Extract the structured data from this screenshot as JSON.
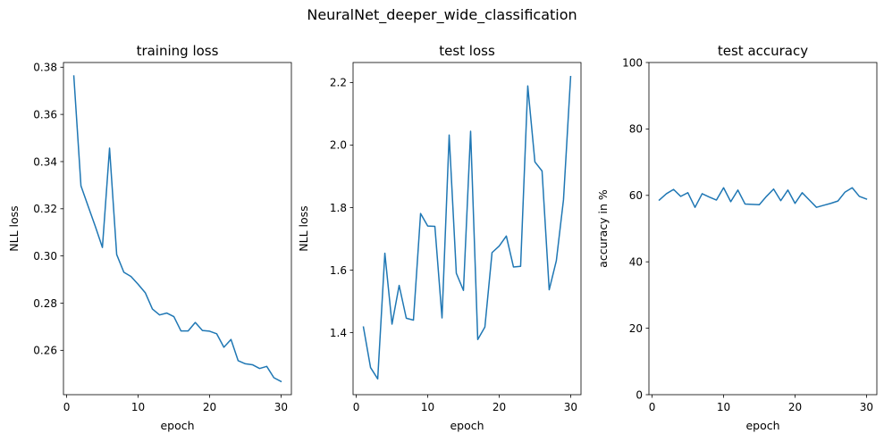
{
  "figure": {
    "suptitle": "NeuralNet_deeper_wide_classification",
    "line_color": "#1f77b4"
  },
  "chart_data": [
    {
      "type": "line",
      "title": "training loss",
      "xlabel": "epoch",
      "ylabel": "NLL loss",
      "xlim": [
        -0.45,
        31.45
      ],
      "ylim": [
        0.2412,
        0.382
      ],
      "xticks": [
        0,
        10,
        20,
        30
      ],
      "xtick_labels": [
        "0",
        "10",
        "20",
        "30"
      ],
      "yticks": [
        0.26,
        0.28,
        0.3,
        0.32,
        0.34,
        0.36,
        0.38
      ],
      "ytick_labels": [
        "0.26",
        "0.28",
        "0.30",
        "0.32",
        "0.34",
        "0.36",
        "0.38"
      ],
      "grid": false,
      "x": [
        1,
        2,
        3,
        4,
        5,
        6,
        7,
        8,
        9,
        10,
        11,
        12,
        13,
        14,
        15,
        16,
        17,
        18,
        19,
        20,
        21,
        22,
        23,
        24,
        25,
        26,
        27,
        28,
        29,
        30
      ],
      "values": [
        0.3763,
        0.3297,
        0.3211,
        0.3126,
        0.3036,
        0.3457,
        0.3006,
        0.2931,
        0.2913,
        0.288,
        0.2844,
        0.2775,
        0.275,
        0.2758,
        0.2743,
        0.2682,
        0.2682,
        0.2718,
        0.2684,
        0.2681,
        0.267,
        0.2613,
        0.2646,
        0.2556,
        0.2543,
        0.2539,
        0.2523,
        0.2532,
        0.2484,
        0.2468
      ]
    },
    {
      "type": "line",
      "title": "test loss",
      "xlabel": "epoch",
      "ylabel": "NLL loss",
      "xlim": [
        -0.45,
        31.45
      ],
      "ylim": [
        1.2015,
        2.264
      ],
      "xticks": [
        0,
        10,
        20,
        30
      ],
      "xtick_labels": [
        "0",
        "10",
        "20",
        "30"
      ],
      "yticks": [
        1.4,
        1.6,
        1.8,
        2.0,
        2.2
      ],
      "ytick_labels": [
        "1.4",
        "1.6",
        "1.8",
        "2.0",
        "2.2"
      ],
      "grid": false,
      "x": [
        1,
        2,
        3,
        4,
        5,
        6,
        7,
        8,
        9,
        10,
        11,
        12,
        13,
        14,
        15,
        16,
        17,
        18,
        19,
        20,
        21,
        22,
        23,
        24,
        25,
        26,
        27,
        28,
        29,
        30
      ],
      "values": [
        1.418,
        1.288,
        1.252,
        1.654,
        1.427,
        1.551,
        1.446,
        1.44,
        1.781,
        1.741,
        1.74,
        1.447,
        2.032,
        1.59,
        1.535,
        2.044,
        1.378,
        1.418,
        1.656,
        1.677,
        1.709,
        1.61,
        1.612,
        2.189,
        1.946,
        1.917,
        1.537,
        1.63,
        1.825,
        2.219
      ]
    },
    {
      "type": "line",
      "title": "test accuracy",
      "xlabel": "epoch",
      "ylabel": "accuracy in %",
      "xlim": [
        -0.45,
        31.45
      ],
      "ylim": [
        0,
        100
      ],
      "xticks": [
        0,
        10,
        20,
        30
      ],
      "xtick_labels": [
        "0",
        "10",
        "20",
        "30"
      ],
      "yticks": [
        0,
        20,
        40,
        60,
        80,
        100
      ],
      "ytick_labels": [
        "0",
        "20",
        "40",
        "60",
        "80",
        "100"
      ],
      "grid": false,
      "x": [
        1,
        2,
        3,
        4,
        5,
        6,
        7,
        8,
        9,
        10,
        11,
        12,
        13,
        14,
        15,
        16,
        17,
        18,
        19,
        20,
        21,
        22,
        23,
        24,
        25,
        26,
        27,
        28,
        29,
        30
      ],
      "values": [
        58.6,
        60.5,
        61.8,
        59.7,
        60.8,
        56.4,
        60.5,
        59.5,
        58.6,
        62.3,
        58.1,
        61.6,
        57.4,
        57.3,
        57.2,
        59.7,
        61.9,
        58.4,
        61.6,
        57.6,
        60.8,
        58.6,
        56.4,
        57.0,
        57.6,
        58.3,
        61.0,
        62.3,
        59.7,
        58.9
      ]
    }
  ]
}
